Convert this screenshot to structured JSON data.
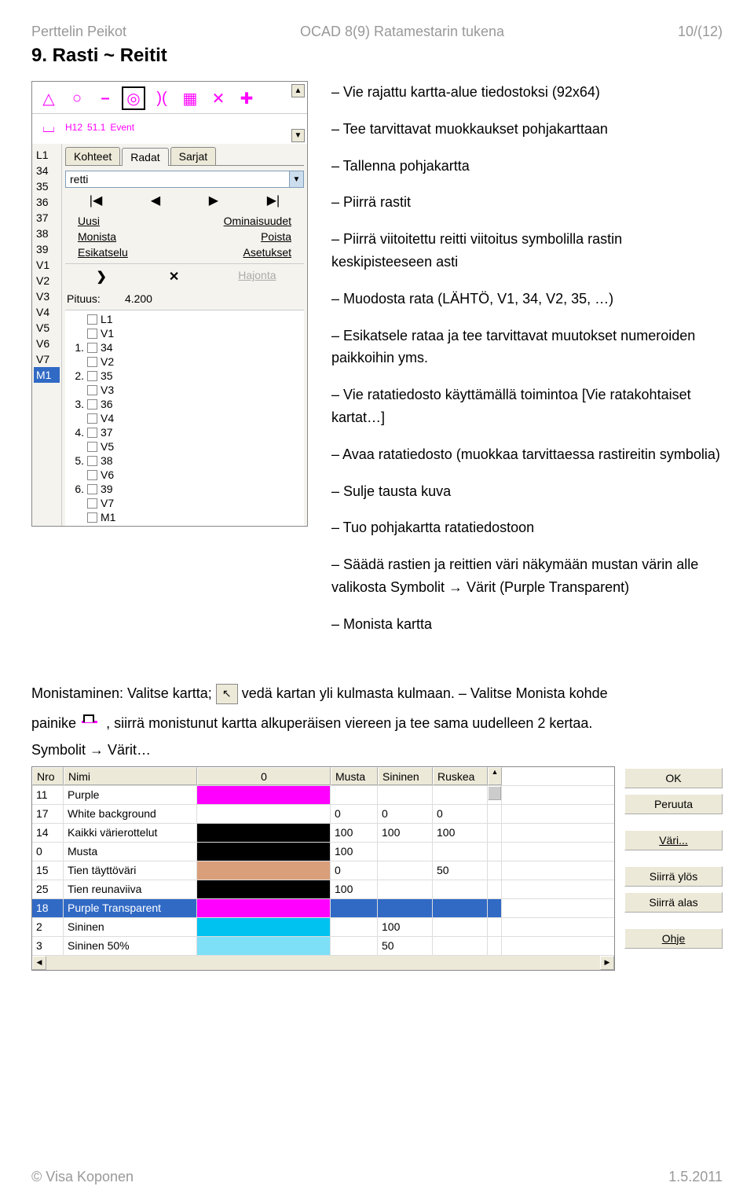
{
  "header": {
    "left": "Perttelin Peikot",
    "center": "OCAD 8(9) Ratamestarin tukena",
    "right": "10/(12)"
  },
  "section_title": "9. Rasti ~ Reitit",
  "panel": {
    "symbol_row_texts": [
      "H12",
      "51.1",
      "Event"
    ],
    "left_list": [
      "L1",
      "34",
      "35",
      "36",
      "37",
      "38",
      "39",
      "V1",
      "V2",
      "V3",
      "V4",
      "V5",
      "V6",
      "V7",
      "M1"
    ],
    "left_selected": "M1",
    "tabs": [
      "Kohteet",
      "Radat",
      "Sarjat"
    ],
    "tab_active": "Radat",
    "dd_value": "retti",
    "btn_uusi": "Uusi",
    "btn_omin": "Ominaisuudet",
    "btn_monista": "Monista",
    "btn_poista": "Poista",
    "btn_esik": "Esikatselu",
    "btn_aset": "Asetukset",
    "btn_hajonta": "Hajonta",
    "pituus_label": "Pituus:",
    "pituus_value": "4.200",
    "checklist": [
      {
        "num": "",
        "label": "L1"
      },
      {
        "num": "",
        "label": "V1"
      },
      {
        "num": "1.",
        "label": "34"
      },
      {
        "num": "",
        "label": "V2"
      },
      {
        "num": "2.",
        "label": "35"
      },
      {
        "num": "",
        "label": "V3"
      },
      {
        "num": "3.",
        "label": "36"
      },
      {
        "num": "",
        "label": "V4"
      },
      {
        "num": "4.",
        "label": "37"
      },
      {
        "num": "",
        "label": "V5"
      },
      {
        "num": "5.",
        "label": "38"
      },
      {
        "num": "",
        "label": "V6"
      },
      {
        "num": "6.",
        "label": "39"
      },
      {
        "num": "",
        "label": "V7"
      },
      {
        "num": "",
        "label": "M1"
      }
    ]
  },
  "instructions": [
    "– Vie rajattu kartta-alue tiedostoksi (92x64)",
    "– Tee tarvittavat muokkaukset pohjakarttaan",
    "– Tallenna pohjakartta",
    "– Piirrä rastit",
    "– Piirrä viitoitettu reitti viitoitus symbolilla rastin keskipisteeseen asti",
    "– Muodosta rata (LÄHTÖ, V1, 34, V2, 35, …)",
    "– Esikatsele rataa ja tee tarvittavat muutokset numeroiden paikkoihin yms.",
    "– Vie ratatiedosto käyttämällä toimintoa [Vie ratakohtaiset kartat…]",
    "– Avaa ratatiedosto (muokkaa tarvittaessa rastireitin symbolia)",
    "– Sulje tausta kuva",
    "– Tuo pohjakartta ratatiedostoon",
    "– Säädä rastien ja reittien väri näkymään mustan värin alle valikosta Symbolit → Värit (Purple Transparent)",
    "– Monista kartta"
  ],
  "para1_a": "Monistaminen: Valitse kartta; ",
  "para1_b": " vedä kartan yli kulmasta kulmaan. – Valitse Monista kohde",
  "para2_a": "painike ",
  "para2_b": " , siirrä monistunut kartta alkuperäisen viereen ja tee sama uudelleen 2 kertaa.",
  "path_text": "Symbolit → Värit…",
  "color_table": {
    "headers": {
      "nro": "Nro",
      "nimi": "Nimi",
      "zero": "0",
      "musta": "Musta",
      "sininen": "Sininen",
      "ruskea": "Ruskea"
    },
    "rows": [
      {
        "nro": "11",
        "nimi": "Purple",
        "hex": "#ff00ff",
        "mu": "",
        "si": "",
        "ru": ""
      },
      {
        "nro": "17",
        "nimi": "White background",
        "hex": "#ffffff",
        "mu": "0",
        "si": "0",
        "ru": "0"
      },
      {
        "nro": "14",
        "nimi": "Kaikki värierottelut",
        "hex": "#000000",
        "mu": "100",
        "si": "100",
        "ru": "100"
      },
      {
        "nro": "0",
        "nimi": "Musta",
        "hex": "#000000",
        "mu": "100",
        "si": "",
        "ru": ""
      },
      {
        "nro": "15",
        "nimi": "Tien täyttöväri",
        "hex": "#d99f7a",
        "mu": "0",
        "si": "",
        "ru": "50"
      },
      {
        "nro": "25",
        "nimi": "Tien reunaviiva",
        "hex": "#000000",
        "mu": "100",
        "si": "",
        "ru": ""
      },
      {
        "nro": "18",
        "nimi": "Purple Transparent",
        "hex": "#ff00ff",
        "mu": "",
        "si": "",
        "ru": "",
        "sel": true
      },
      {
        "nro": "2",
        "nimi": "Sininen",
        "hex": "#00c2f0",
        "mu": "",
        "si": "100",
        "ru": ""
      },
      {
        "nro": "3",
        "nimi": "Sininen 50%",
        "hex": "#7de0f7",
        "mu": "",
        "si": "50",
        "ru": ""
      }
    ]
  },
  "side_buttons": {
    "ok": "OK",
    "peruuta": "Peruuta",
    "vari": "Väri...",
    "ylos": "Siirrä ylös",
    "alas": "Siirrä alas",
    "ohje": "Ohje"
  },
  "footer": {
    "left": "© Visa Koponen",
    "right": "1.5.2011"
  }
}
